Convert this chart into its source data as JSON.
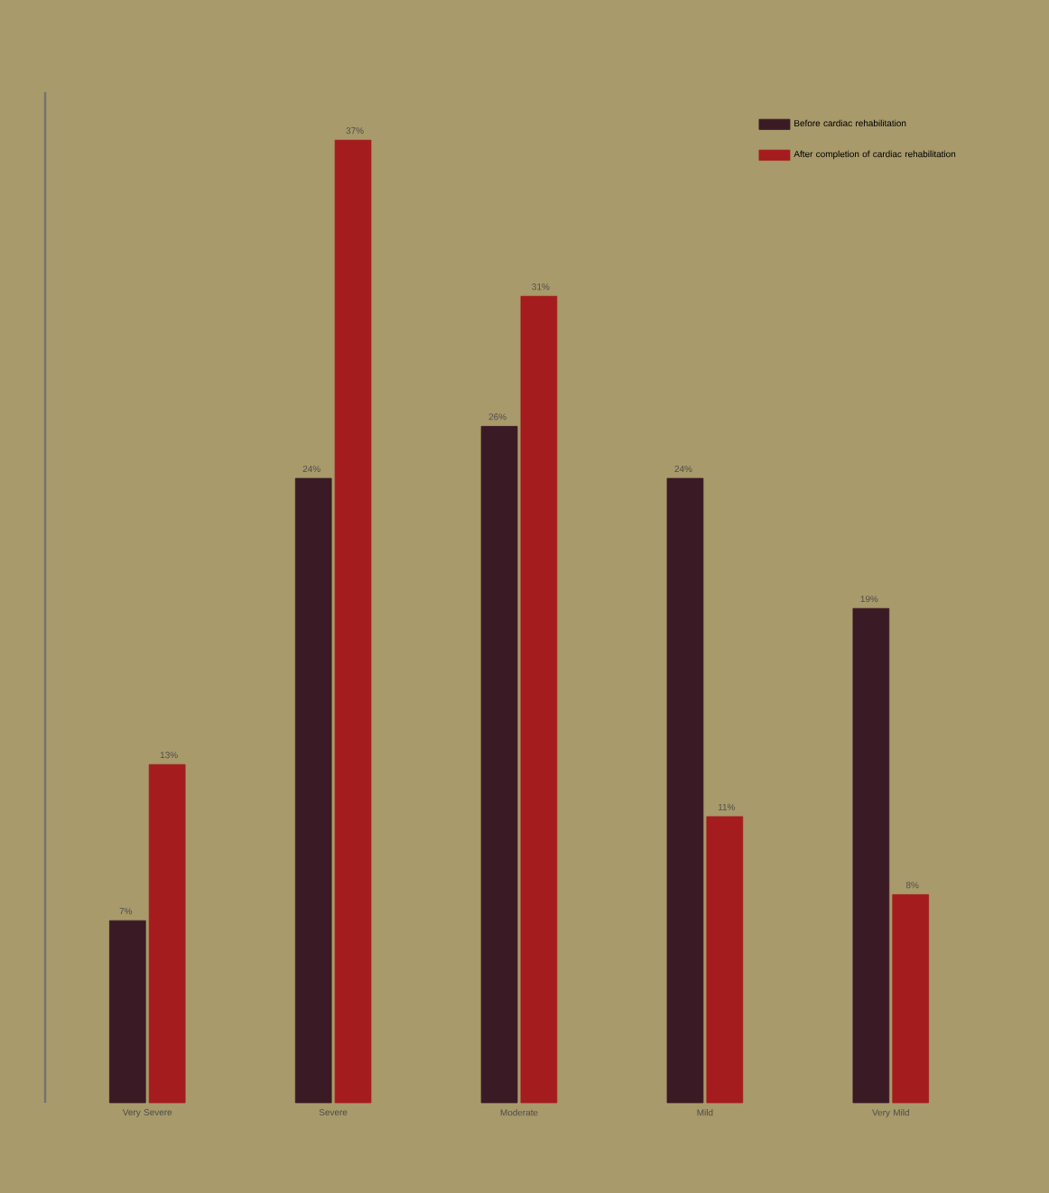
{
  "chart_data": {
    "type": "bar",
    "categories": [
      "Very Severe",
      "Severe",
      "Moderate",
      "Mild",
      "Very Mild"
    ],
    "series": [
      {
        "name": "Before cardiac rehabilitation",
        "color": "#3a1a24",
        "values": [
          7,
          24,
          26,
          24,
          19
        ],
        "value_labels": [
          "7%",
          "24%",
          "26%",
          "24%",
          "19%"
        ]
      },
      {
        "name": "After completion of cardiac rehabilitation",
        "color": "#a51c1e",
        "values": [
          13,
          37,
          31,
          11,
          8
        ],
        "value_labels": [
          "13%",
          "37%",
          "31%",
          "11%",
          "8%"
        ]
      }
    ],
    "legend": "top right"
  }
}
